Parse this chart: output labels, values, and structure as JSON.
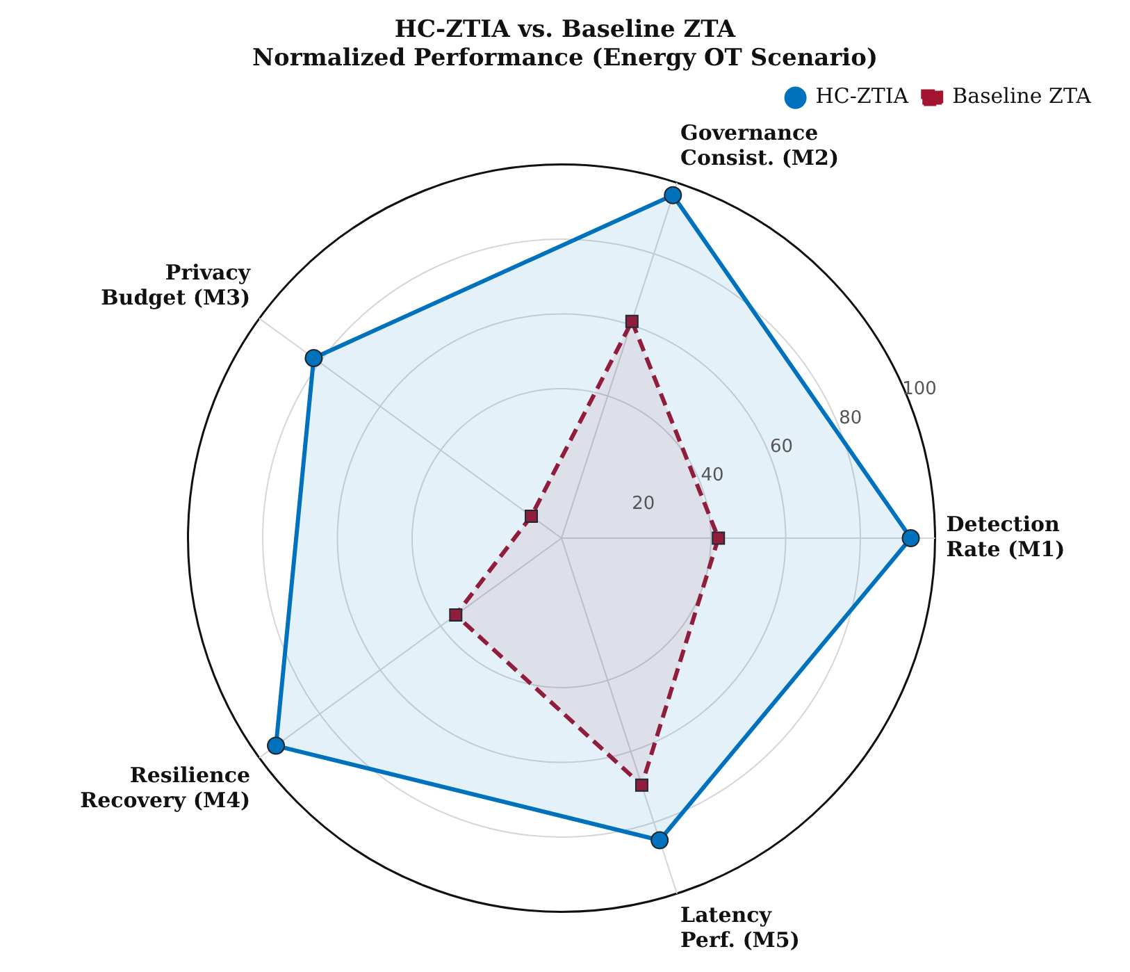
{
  "chart_data": {
    "type": "radar",
    "title": "HC-ZTIA vs. Baseline ZTA\nNormalized Performance (Energy OT Scenario)",
    "categories": [
      "Governance\nConsist. (M2)",
      "Detection\nRate (M1)",
      "Latency\nPerf. (M5)",
      "Resilience\nRecovery (M4)",
      "Privacy\nBudget (M3)"
    ],
    "series": [
      {
        "name": "HC-ZTIA",
        "color": "#0072bd",
        "values": [
          96.5,
          93.5,
          85,
          94.5,
          82
        ],
        "marker": "circle",
        "line_style": "solid"
      },
      {
        "name": "Baseline ZTA",
        "color": "#a2142f",
        "values": [
          61,
          42,
          69.5,
          35,
          10
        ],
        "marker": "square",
        "line_style": "dashed"
      }
    ],
    "ylim": [
      0,
      100
    ],
    "yticks": [
      20,
      40,
      60,
      80,
      100
    ],
    "grid": true,
    "legend": "top right"
  }
}
